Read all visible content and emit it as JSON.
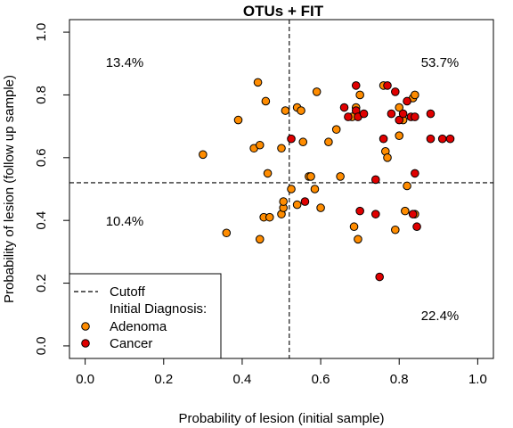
{
  "chart_data": {
    "type": "scatter",
    "title": "OTUs + FIT",
    "xlabel": "Probability of lesion (initial sample)",
    "ylabel": "Probability of lesion (follow up sample)",
    "xlim": [
      -0.04,
      1.04
    ],
    "ylim": [
      -0.04,
      1.04
    ],
    "x_ticks": [
      "0.0",
      "0.2",
      "0.4",
      "0.6",
      "0.8",
      "1.0"
    ],
    "y_ticks": [
      "0.0",
      "0.2",
      "0.4",
      "0.6",
      "0.8",
      "1.0"
    ],
    "cutoff": {
      "x": 0.52,
      "y": 0.52
    },
    "quadrant_labels": {
      "top_left": "13.4%",
      "top_right": "53.7%",
      "bottom_left": "10.4%",
      "bottom_right": "22.4%"
    },
    "legend": {
      "position": "bottom-left",
      "cutoff_label": "Cutoff",
      "heading": "Initial Diagnosis:",
      "adenoma_label": "Adenoma",
      "cancer_label": "Cancer"
    },
    "series": [
      {
        "name": "Adenoma",
        "color": "#ff8c00",
        "x": [
          0.3,
          0.36,
          0.39,
          0.43,
          0.44,
          0.445,
          0.445,
          0.455,
          0.46,
          0.465,
          0.47,
          0.5,
          0.5,
          0.505,
          0.51,
          0.505,
          0.525,
          0.54,
          0.54,
          0.55,
          0.555,
          0.57,
          0.575,
          0.585,
          0.59,
          0.6,
          0.62,
          0.64,
          0.65,
          0.68,
          0.685,
          0.69,
          0.695,
          0.7,
          0.76,
          0.765,
          0.77,
          0.79,
          0.8,
          0.8,
          0.81,
          0.815,
          0.82,
          0.835,
          0.84,
          0.84
        ],
        "y": [
          0.61,
          0.36,
          0.72,
          0.63,
          0.84,
          0.64,
          0.34,
          0.41,
          0.78,
          0.55,
          0.41,
          0.42,
          0.63,
          0.44,
          0.75,
          0.46,
          0.5,
          0.76,
          0.45,
          0.75,
          0.65,
          0.54,
          0.54,
          0.5,
          0.81,
          0.44,
          0.65,
          0.69,
          0.54,
          0.73,
          0.38,
          0.76,
          0.34,
          0.8,
          0.83,
          0.62,
          0.6,
          0.37,
          0.76,
          0.67,
          0.72,
          0.43,
          0.51,
          0.79,
          0.8,
          0.42
        ]
      },
      {
        "name": "Cancer",
        "color": "#e00000",
        "x": [
          0.525,
          0.56,
          0.66,
          0.67,
          0.69,
          0.69,
          0.695,
          0.7,
          0.71,
          0.74,
          0.74,
          0.75,
          0.76,
          0.77,
          0.78,
          0.79,
          0.8,
          0.81,
          0.82,
          0.83,
          0.835,
          0.84,
          0.84,
          0.845,
          0.88,
          0.88,
          0.91,
          0.93
        ],
        "y": [
          0.66,
          0.46,
          0.76,
          0.73,
          0.83,
          0.75,
          0.73,
          0.43,
          0.74,
          0.53,
          0.42,
          0.22,
          0.66,
          0.83,
          0.74,
          0.81,
          0.72,
          0.74,
          0.78,
          0.73,
          0.42,
          0.73,
          0.55,
          0.38,
          0.74,
          0.66,
          0.66,
          0.66
        ]
      }
    ]
  }
}
